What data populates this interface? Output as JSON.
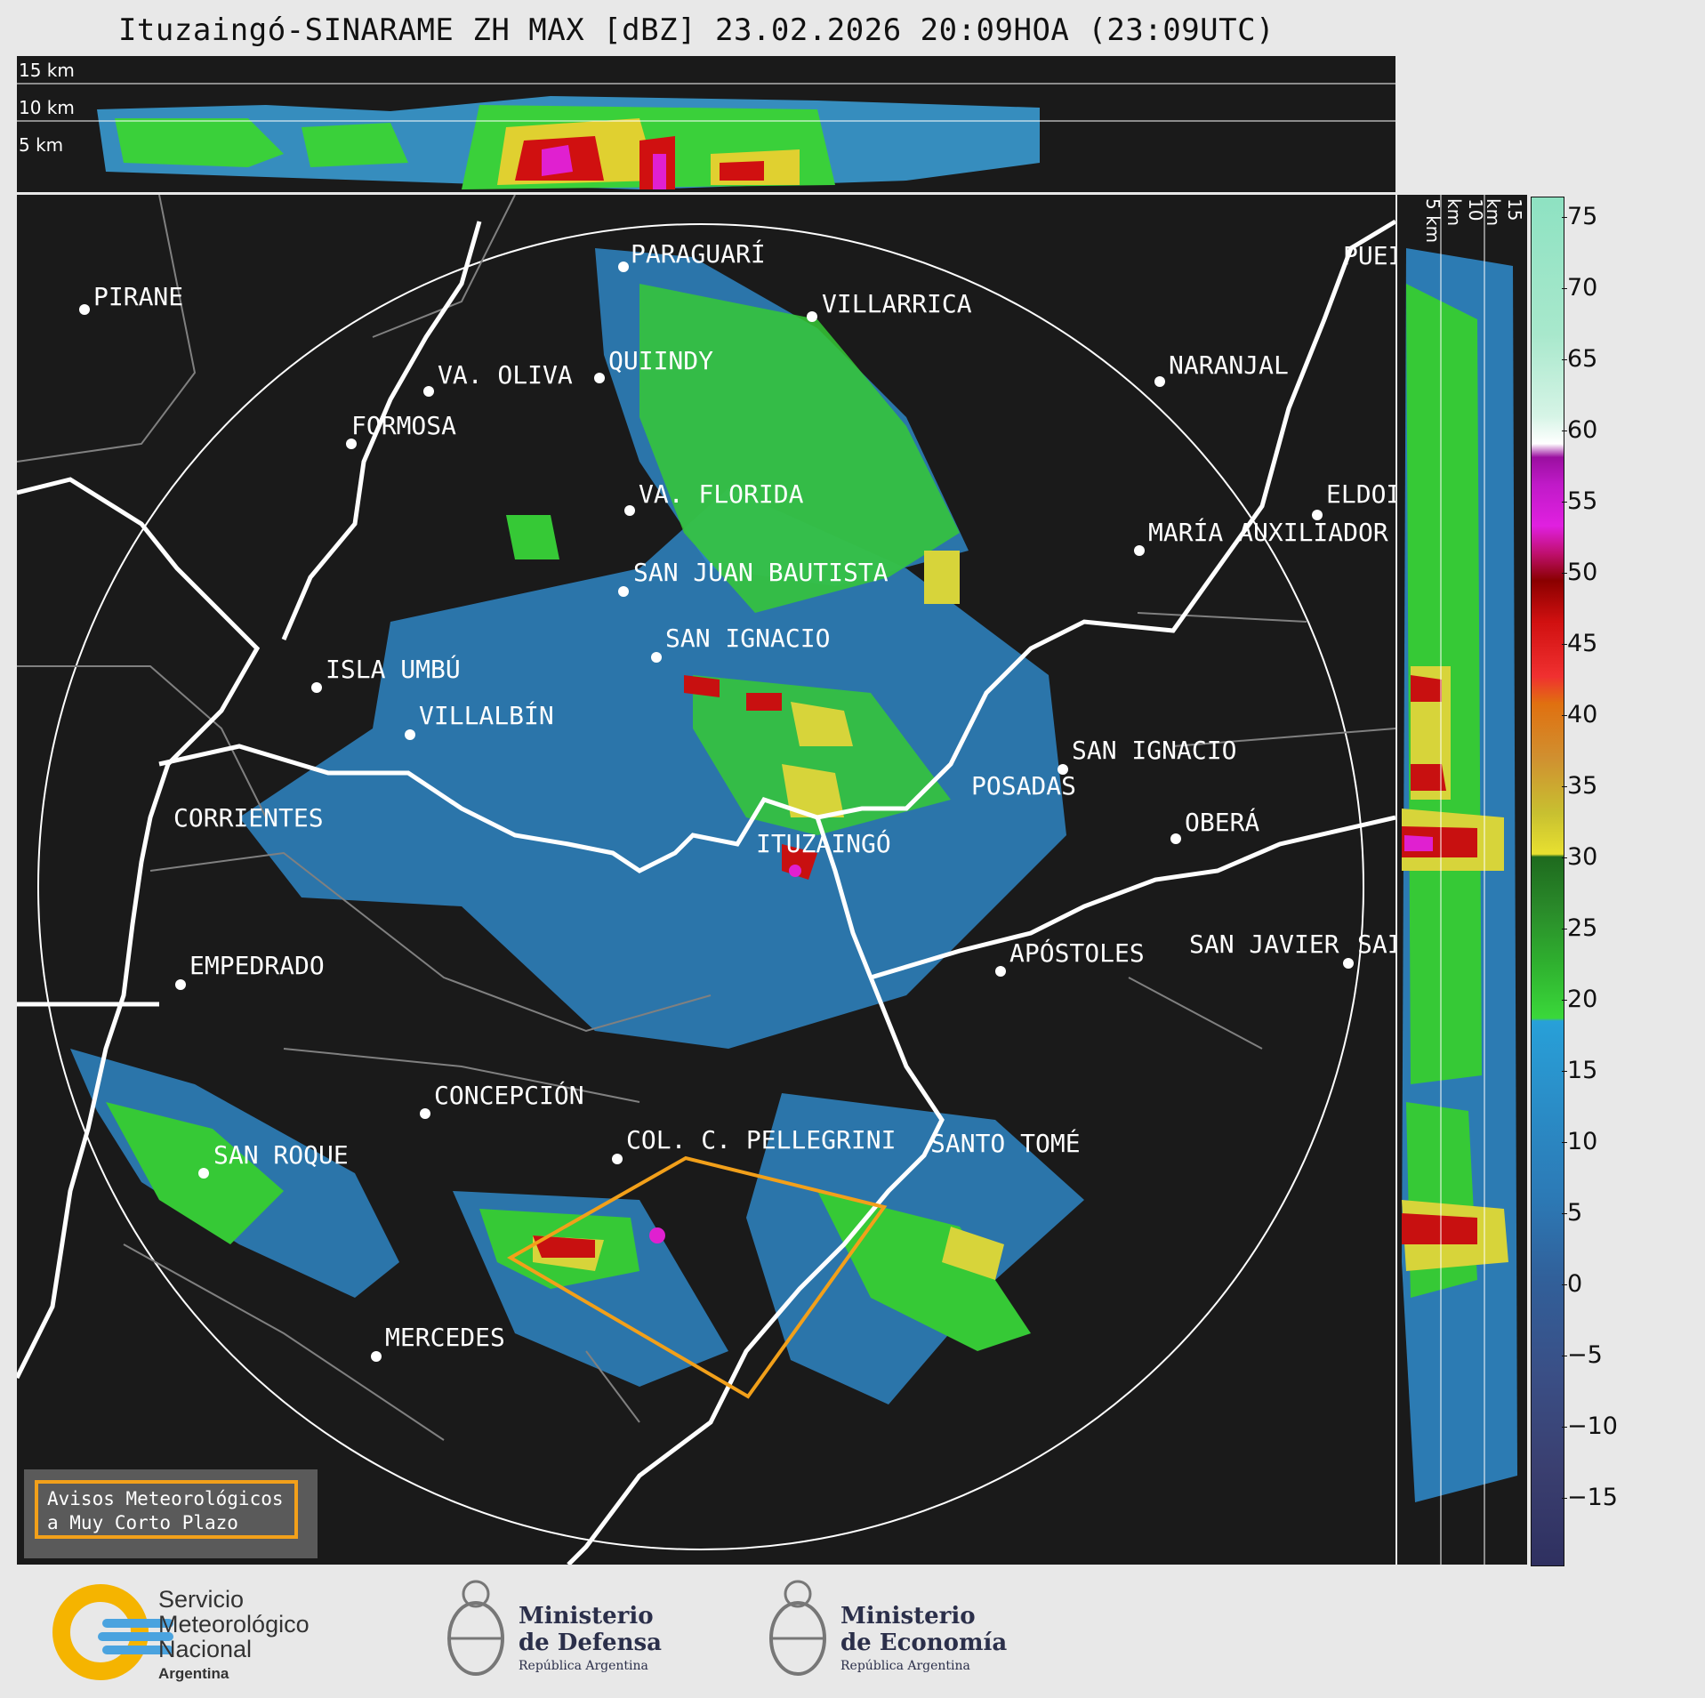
{
  "title": "Ituzaingó-SINARAME ZH MAX [dBZ] 23.02.2026 20:09HOA (23:09UTC)",
  "top_panel": {
    "km_labels": [
      "15 km",
      "10 km",
      "5 km"
    ]
  },
  "side_panel": {
    "km_labels": [
      "5 km",
      "10 km",
      "15 km"
    ]
  },
  "colorbar": {
    "unit": "dBZ",
    "ticks": [
      "75",
      "70",
      "65",
      "60",
      "55",
      "50",
      "45",
      "40",
      "35",
      "30",
      "25",
      "20",
      "15",
      "10",
      "5",
      "0",
      "−5",
      "−10",
      "−15"
    ]
  },
  "cities": [
    {
      "name": "PIRANE"
    },
    {
      "name": "PARAGUARÍ"
    },
    {
      "name": "VILLARRICA"
    },
    {
      "name": "QUIINDY"
    },
    {
      "name": "VA. OLIVA"
    },
    {
      "name": "FORMOSA"
    },
    {
      "name": "NARANJAL"
    },
    {
      "name": "PUEI"
    },
    {
      "name": "ELDOI"
    },
    {
      "name": "VA. FLORIDA"
    },
    {
      "name": "MARÍA AUXILIADOR"
    },
    {
      "name": "SAN JUAN BAUTISTA"
    },
    {
      "name": "SAN IGNACIO"
    },
    {
      "name": "ISLA UMBÚ"
    },
    {
      "name": "VILLALBÍN"
    },
    {
      "name": "SAN IGNACIO"
    },
    {
      "name": "POSADAS"
    },
    {
      "name": "CORRIENTES"
    },
    {
      "name": "ITUZAINGÓ"
    },
    {
      "name": "OBERÁ"
    },
    {
      "name": "EMPEDRADO"
    },
    {
      "name": "APÓSTOLES"
    },
    {
      "name": "SAN JAVIER"
    },
    {
      "name": "SAI"
    },
    {
      "name": "CONCEPCIÓN"
    },
    {
      "name": "COL. C. PELLEGRINI"
    },
    {
      "name": "SANTO TOMÉ"
    },
    {
      "name": "SAN ROQUE"
    },
    {
      "name": "MERCEDES"
    }
  ],
  "legend": {
    "line1": "Avisos Meteorológicos",
    "line2": "a Muy Corto Plazo",
    "color": "#f2a01a"
  },
  "footer": {
    "smn": [
      "Servicio",
      "Meteorológico",
      "Nacional",
      "Argentina"
    ],
    "defensa": [
      "Ministerio",
      "de Defensa",
      "República Argentina"
    ],
    "economia": [
      "Ministerio",
      "de Economía",
      "República Argentina"
    ]
  },
  "colors": {
    "background": "#1a1a1a",
    "range_ring": "#ffffff",
    "rivers": "#ffffff",
    "borders": "#808080",
    "warning_polygon": "#f2a01a"
  }
}
